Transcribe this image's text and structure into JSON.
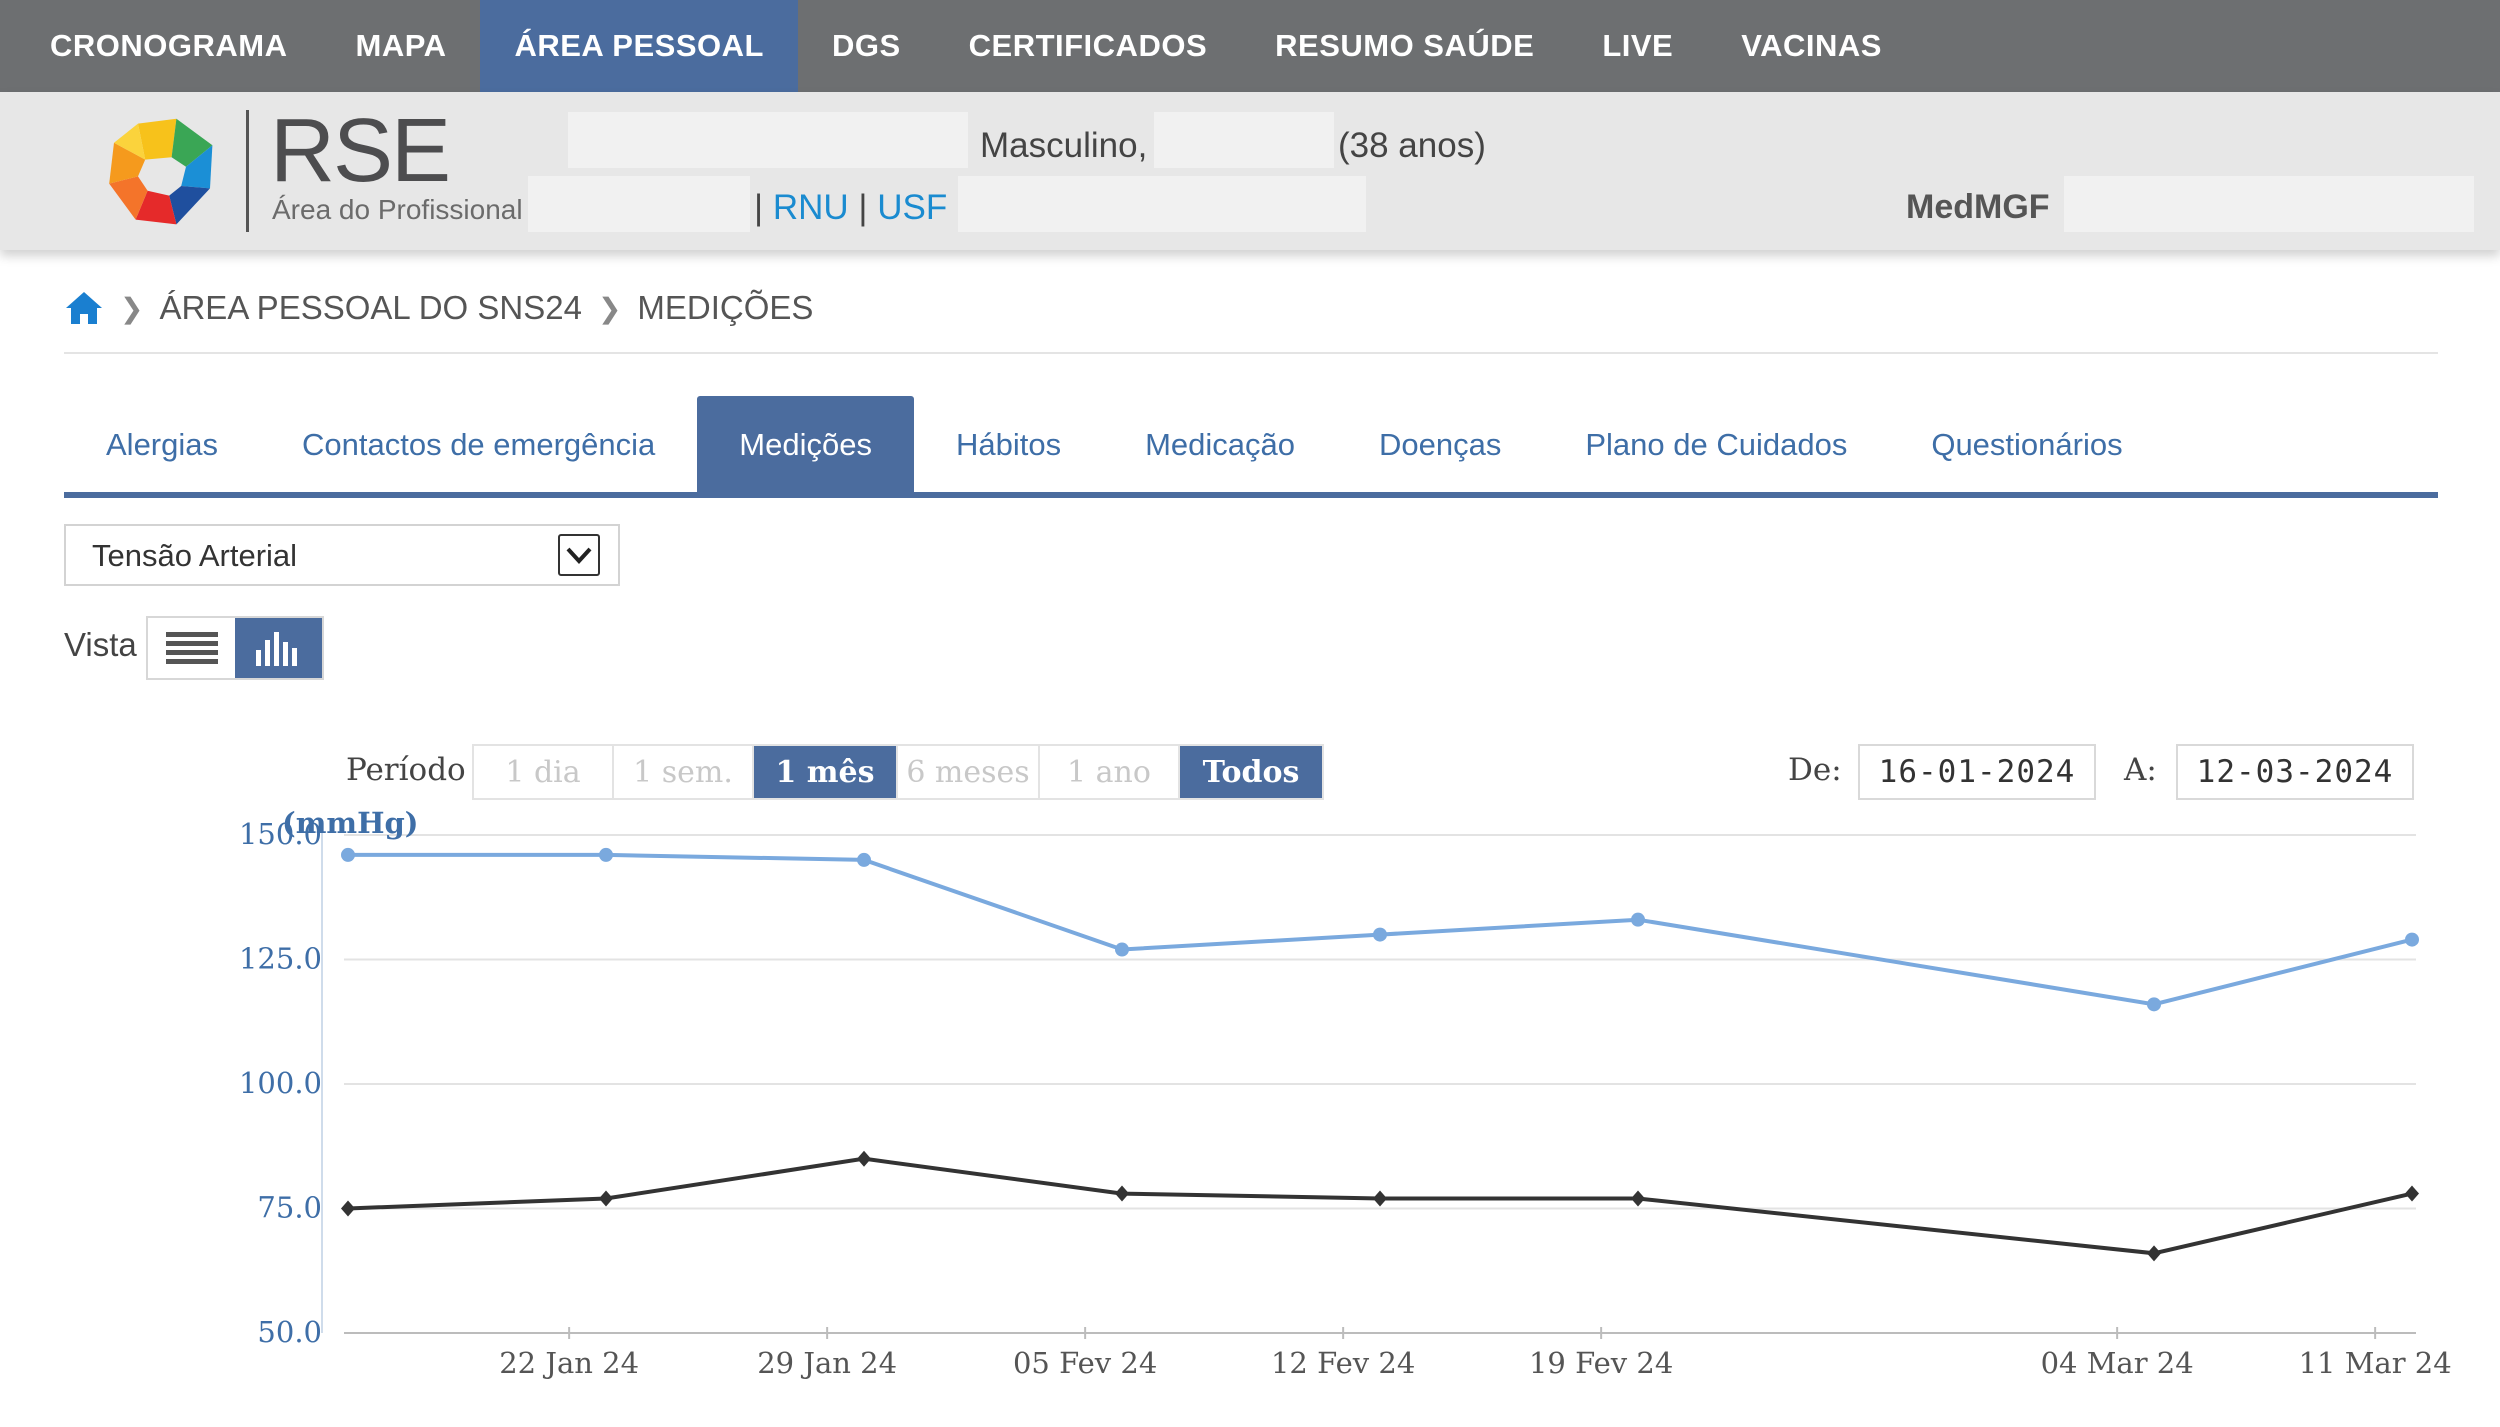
{
  "topnav": {
    "items": [
      {
        "label": "CRONOGRAMA",
        "active": false
      },
      {
        "label": "MAPA",
        "active": false
      },
      {
        "label": "ÁREA PESSOAL",
        "active": true
      },
      {
        "label": "DGS",
        "active": false
      },
      {
        "label": "CERTIFICADOS",
        "active": false
      },
      {
        "label": "RESUMO SAÚDE",
        "active": false
      },
      {
        "label": "LIVE",
        "active": false
      },
      {
        "label": "VACINAS",
        "active": false
      }
    ]
  },
  "header": {
    "logo_title": "RSE",
    "logo_subtitle": "Área do Profissional",
    "sex": "Masculino,",
    "age": "(38 anos)",
    "link_rnu": "RNU",
    "link_usf": "USF",
    "profile": "MedMGF"
  },
  "breadcrumb": {
    "items": [
      "ÁREA PESSOAL DO SNS24",
      "MEDIÇÕES"
    ]
  },
  "tabs": [
    {
      "label": "Alergias",
      "active": false
    },
    {
      "label": "Contactos de emergência",
      "active": false
    },
    {
      "label": "Medições",
      "active": true
    },
    {
      "label": "Hábitos",
      "active": false
    },
    {
      "label": "Medicação",
      "active": false
    },
    {
      "label": "Doenças",
      "active": false
    },
    {
      "label": "Plano de Cuidados",
      "active": false
    },
    {
      "label": "Questionários",
      "active": false
    }
  ],
  "measure_select": {
    "value": "Tensão Arterial"
  },
  "view": {
    "label": "Vista",
    "list_icon": "list-icon",
    "chart_icon": "bar-chart-icon",
    "active": "chart"
  },
  "period": {
    "label": "Período",
    "options": [
      {
        "label": "1 dia",
        "selected": false
      },
      {
        "label": "1 sem.",
        "selected": false
      },
      {
        "label": "1 mês",
        "selected": true
      },
      {
        "label": "6 meses",
        "selected": false
      },
      {
        "label": "1 ano",
        "selected": false
      },
      {
        "label": "Todos",
        "selected": true
      }
    ]
  },
  "date_range": {
    "from_label": "De:",
    "from_value": "16-01-2024",
    "to_label": "A:",
    "to_value": "12-03-2024"
  },
  "colors": {
    "accent": "#4b6c9e",
    "nav_bg": "#6d6f71",
    "systolic": "#7aa9de",
    "diastolic": "#333333"
  },
  "chart_data": {
    "type": "line",
    "ylabel": "(mmHg)",
    "ylim": [
      50,
      150
    ],
    "yticks": [
      50.0,
      75.0,
      100.0,
      125.0,
      150.0
    ],
    "ytick_labels": [
      "50.0",
      "75.0",
      "100.0",
      "125.0",
      "150.0"
    ],
    "xlim": [
      "2024-01-16",
      "2024-03-12"
    ],
    "xticks": [
      "2024-01-22",
      "2024-01-29",
      "2024-02-05",
      "2024-02-12",
      "2024-02-19",
      "2024-03-04",
      "2024-03-11"
    ],
    "xtick_labels": [
      "22 Jan 24",
      "29 Jan 24",
      "05 Fev 24",
      "12 Fev 24",
      "19 Fev 24",
      "04 Mar 24",
      "11 Mar 24"
    ],
    "grid": true,
    "series": [
      {
        "color": "#7aa9de",
        "points": [
          {
            "x": "2024-01-16",
            "y": 146
          },
          {
            "x": "2024-01-23",
            "y": 146
          },
          {
            "x": "2024-01-30",
            "y": 145
          },
          {
            "x": "2024-02-06",
            "y": 127
          },
          {
            "x": "2024-02-13",
            "y": 130
          },
          {
            "x": "2024-02-20",
            "y": 133
          },
          {
            "x": "2024-03-05",
            "y": 116
          },
          {
            "x": "2024-03-12",
            "y": 129
          }
        ]
      },
      {
        "color": "#333333",
        "points": [
          {
            "x": "2024-01-16",
            "y": 75
          },
          {
            "x": "2024-01-23",
            "y": 77
          },
          {
            "x": "2024-01-30",
            "y": 85
          },
          {
            "x": "2024-02-06",
            "y": 78
          },
          {
            "x": "2024-02-13",
            "y": 77
          },
          {
            "x": "2024-02-20",
            "y": 77
          },
          {
            "x": "2024-03-05",
            "y": 66
          },
          {
            "x": "2024-03-12",
            "y": 78
          }
        ]
      }
    ]
  }
}
